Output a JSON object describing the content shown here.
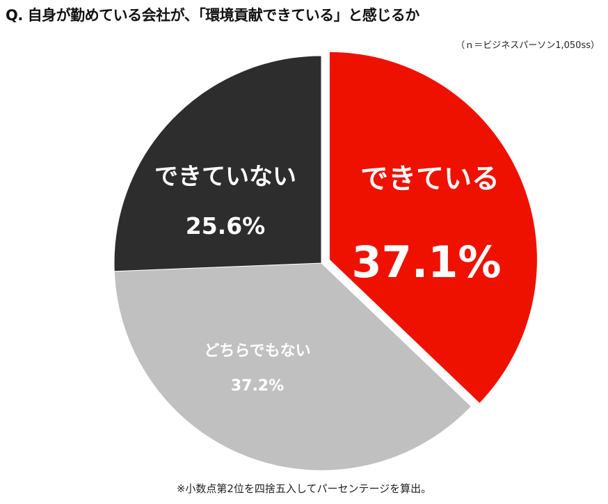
{
  "title": "Q. 自身が勤めている会社が、「環境貢献できている」と感じるか",
  "sample_note": "（ｎ＝ビジネスパーソン1,050ss）",
  "footnote": "※小数点第2位を四捨五入してパーセンテージを算出。",
  "colors": {
    "yes": "#ee1100",
    "no": "#2d2d2d",
    "neutral": "#c0c0c0"
  },
  "labels": {
    "yes": "できている",
    "yes_pct": "37.1%",
    "no": "できていない",
    "no_pct": "25.6%",
    "neutral": "どちらでもない",
    "neutral_pct": "37.2%"
  },
  "chart_data": {
    "type": "pie",
    "title": "Q. 自身が勤めている会社が、「環境貢献できている」と感じるか",
    "subtitle": "（ｎ＝ビジネスパーソン1,050ss）",
    "categories": [
      "できている",
      "どちらでもない",
      "できていない"
    ],
    "values": [
      37.1,
      37.2,
      25.6
    ],
    "unit": "%",
    "colors": [
      "#ee1100",
      "#c0c0c0",
      "#2d2d2d"
    ],
    "exploded": [
      "できている"
    ],
    "start_angle": "12 o'clock, clockwise",
    "annotations": [
      "※小数点第2位を四捨五入してパーセンテージを算出。"
    ]
  }
}
